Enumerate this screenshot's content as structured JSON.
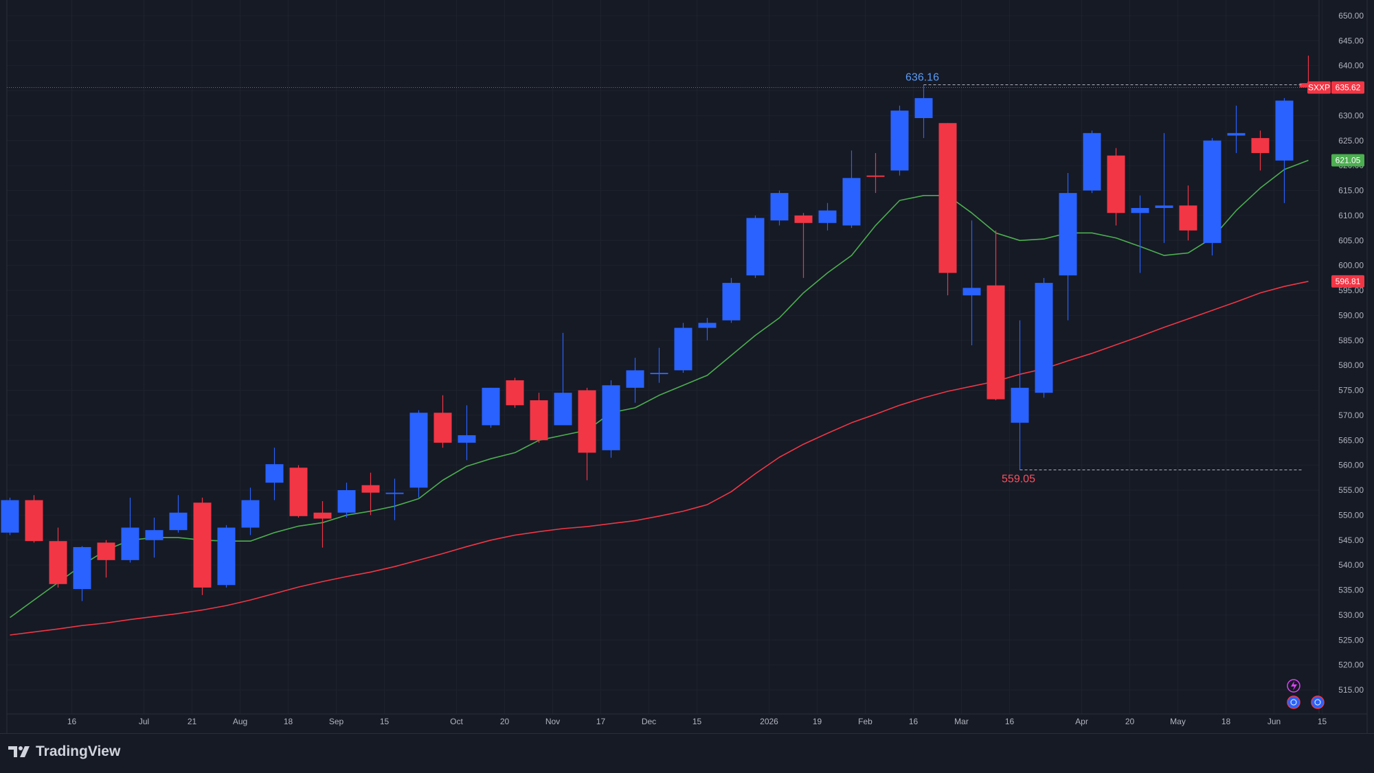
{
  "branding": {
    "logo_text": "TradingView"
  },
  "chart_data": {
    "type": "candlestick",
    "symbol": "SXXP",
    "timeframe": "1W",
    "colors": {
      "up": "#2962ff",
      "down": "#f23645",
      "ma_fast": "#4caf50",
      "ma_slow": "#f23645",
      "background": "#161a25",
      "grid": "#1e222d"
    },
    "ylim": [
      511,
      652
    ],
    "y_ticks": [
      "515.00",
      "520.00",
      "525.00",
      "530.00",
      "535.00",
      "540.00",
      "545.00",
      "550.00",
      "555.00",
      "560.00",
      "565.00",
      "570.00",
      "575.00",
      "580.00",
      "585.00",
      "590.00",
      "595.00",
      "600.00",
      "605.00",
      "610.00",
      "615.00",
      "620.00",
      "625.00",
      "630.00",
      "635.00",
      "640.00",
      "645.00",
      "650.00"
    ],
    "x_ticks": [
      {
        "i": 1,
        "label": "16"
      },
      {
        "i": 4,
        "label": "Jul"
      },
      {
        "i": 6,
        "label": "21"
      },
      {
        "i": 8,
        "label": "Aug"
      },
      {
        "i": 10,
        "label": "18"
      },
      {
        "i": 12,
        "label": "Sep"
      },
      {
        "i": 14,
        "label": "15"
      },
      {
        "i": 17,
        "label": "Oct"
      },
      {
        "i": 19,
        "label": "20"
      },
      {
        "i": 21,
        "label": "Nov"
      },
      {
        "i": 23,
        "label": "17"
      },
      {
        "i": 25,
        "label": "Dec"
      },
      {
        "i": 27,
        "label": "15"
      },
      {
        "i": 30,
        "label": "2026"
      },
      {
        "i": 32,
        "label": "19"
      },
      {
        "i": 34,
        "label": "Feb"
      },
      {
        "i": 36,
        "label": "16"
      },
      {
        "i": 38,
        "label": "Mar"
      },
      {
        "i": 40,
        "label": "16"
      },
      {
        "i": 43,
        "label": "Apr"
      },
      {
        "i": 45,
        "label": "20"
      },
      {
        "i": 47,
        "label": "May"
      },
      {
        "i": 49,
        "label": "18"
      },
      {
        "i": 51,
        "label": "Jun"
      },
      {
        "i": 53,
        "label": "15"
      }
    ],
    "candles": [
      {
        "o": 546.5,
        "h": 553.5,
        "l": 546.0,
        "c": 553.0
      },
      {
        "o": 553.0,
        "h": 554.0,
        "l": 544.5,
        "c": 544.8
      },
      {
        "o": 544.8,
        "h": 547.5,
        "l": 535.5,
        "c": 536.2
      },
      {
        "o": 535.2,
        "h": 543.8,
        "l": 532.8,
        "c": 543.6
      },
      {
        "o": 544.5,
        "h": 545.0,
        "l": 537.5,
        "c": 541.0
      },
      {
        "o": 541.0,
        "h": 553.5,
        "l": 540.5,
        "c": 547.5
      },
      {
        "o": 545.0,
        "h": 549.5,
        "l": 541.5,
        "c": 547.0
      },
      {
        "o": 547.0,
        "h": 554.0,
        "l": 546.5,
        "c": 550.5
      },
      {
        "o": 552.5,
        "h": 553.5,
        "l": 534.0,
        "c": 535.5
      },
      {
        "o": 536.0,
        "h": 548.0,
        "l": 535.5,
        "c": 547.5
      },
      {
        "o": 547.5,
        "h": 555.5,
        "l": 546.0,
        "c": 553.0
      },
      {
        "o": 556.5,
        "h": 563.5,
        "l": 553.0,
        "c": 560.2
      },
      {
        "o": 559.5,
        "h": 560.0,
        "l": 549.5,
        "c": 549.8
      },
      {
        "o": 550.5,
        "h": 552.8,
        "l": 543.5,
        "c": 549.3
      },
      {
        "o": 550.5,
        "h": 556.5,
        "l": 549.5,
        "c": 555.0
      },
      {
        "o": 556.0,
        "h": 558.5,
        "l": 550.0,
        "c": 554.5
      },
      {
        "o": 554.3,
        "h": 557.3,
        "l": 549.0,
        "c": 554.5
      },
      {
        "o": 555.5,
        "h": 571.0,
        "l": 553.5,
        "c": 570.5
      },
      {
        "o": 570.5,
        "h": 574.0,
        "l": 563.5,
        "c": 564.5
      },
      {
        "o": 564.5,
        "h": 572.0,
        "l": 561.0,
        "c": 566.0
      },
      {
        "o": 568.0,
        "h": 575.5,
        "l": 567.5,
        "c": 575.5
      },
      {
        "o": 577.0,
        "h": 577.5,
        "l": 571.5,
        "c": 572.0
      },
      {
        "o": 573.0,
        "h": 574.5,
        "l": 564.5,
        "c": 565.0
      },
      {
        "o": 568.0,
        "h": 586.5,
        "l": 568.0,
        "c": 574.5
      },
      {
        "o": 575.0,
        "h": 575.5,
        "l": 557.0,
        "c": 562.5
      },
      {
        "o": 563.0,
        "h": 577.0,
        "l": 561.5,
        "c": 576.0
      },
      {
        "o": 575.5,
        "h": 581.5,
        "l": 572.5,
        "c": 579.0
      },
      {
        "o": 578.5,
        "h": 583.5,
        "l": 576.5,
        "c": 578.5
      },
      {
        "o": 579.0,
        "h": 588.5,
        "l": 578.5,
        "c": 587.5
      },
      {
        "o": 587.5,
        "h": 589.5,
        "l": 585.0,
        "c": 588.5
      },
      {
        "o": 589.0,
        "h": 597.5,
        "l": 588.5,
        "c": 596.5
      },
      {
        "o": 598.0,
        "h": 610.0,
        "l": 597.5,
        "c": 609.5
      },
      {
        "o": 609.0,
        "h": 615.0,
        "l": 608.0,
        "c": 614.5
      },
      {
        "o": 610.0,
        "h": 610.5,
        "l": 597.5,
        "c": 608.5
      },
      {
        "o": 608.5,
        "h": 612.5,
        "l": 607.0,
        "c": 611.0
      },
      {
        "o": 608.0,
        "h": 623.0,
        "l": 607.5,
        "c": 617.5
      },
      {
        "o": 618.0,
        "h": 622.5,
        "l": 614.5,
        "c": 617.8
      },
      {
        "o": 619.0,
        "h": 632.0,
        "l": 618.0,
        "c": 631.0
      },
      {
        "o": 629.5,
        "h": 636.16,
        "l": 625.5,
        "c": 633.5
      },
      {
        "o": 628.5,
        "h": 628.5,
        "l": 594.0,
        "c": 598.5
      },
      {
        "o": 594.0,
        "h": 609.0,
        "l": 584.0,
        "c": 595.5
      },
      {
        "o": 596.0,
        "h": 607.0,
        "l": 573.0,
        "c": 573.2
      },
      {
        "o": 568.5,
        "h": 589.0,
        "l": 559.05,
        "c": 575.5
      },
      {
        "o": 574.5,
        "h": 597.5,
        "l": 573.5,
        "c": 596.5
      },
      {
        "o": 598.0,
        "h": 618.5,
        "l": 589.0,
        "c": 614.5
      },
      {
        "o": 615.0,
        "h": 627.0,
        "l": 614.5,
        "c": 626.5
      },
      {
        "o": 622.0,
        "h": 623.5,
        "l": 608.0,
        "c": 610.5
      },
      {
        "o": 610.5,
        "h": 614.0,
        "l": 598.5,
        "c": 611.5
      },
      {
        "o": 611.5,
        "h": 626.5,
        "l": 604.5,
        "c": 612.0
      },
      {
        "o": 612.0,
        "h": 616.0,
        "l": 605.0,
        "c": 607.0
      },
      {
        "o": 604.5,
        "h": 625.5,
        "l": 602.0,
        "c": 625.0
      },
      {
        "o": 626.0,
        "h": 632.0,
        "l": 622.5,
        "c": 626.5
      },
      {
        "o": 625.5,
        "h": 627.0,
        "l": 619.0,
        "c": 622.5
      },
      {
        "o": 621.0,
        "h": 633.5,
        "l": 612.5,
        "c": 633.0
      },
      {
        "o": 636.5,
        "h": 642.0,
        "l": 635.0,
        "c": 635.62
      }
    ],
    "ma_fast": [
      529.5,
      533.0,
      536.5,
      540.0,
      543.0,
      545.0,
      545.5,
      545.5,
      545.0,
      544.8,
      544.8,
      546.5,
      547.8,
      548.5,
      550.0,
      550.8,
      551.8,
      553.3,
      557.0,
      559.8,
      561.3,
      562.5,
      565.0,
      566.0,
      567.0,
      570.5,
      571.5,
      574.0,
      576.0,
      578.0,
      582.0,
      586.0,
      589.5,
      594.5,
      598.5,
      602.0,
      608.0,
      613.0,
      614.0,
      614.0,
      610.5,
      606.5,
      605.0,
      605.3,
      606.5,
      606.5,
      605.5,
      603.8,
      602.0,
      602.5,
      605.5,
      611.0,
      615.5,
      619.2,
      621.05
    ],
    "ma_slow": [
      526.0,
      526.6,
      527.2,
      527.9,
      528.4,
      529.1,
      529.7,
      530.3,
      531.0,
      531.9,
      533.0,
      534.3,
      535.6,
      536.7,
      537.7,
      538.6,
      539.7,
      541.0,
      542.3,
      543.7,
      545.0,
      546.0,
      546.7,
      547.3,
      547.7,
      548.3,
      548.9,
      549.8,
      550.8,
      552.1,
      554.7,
      558.3,
      561.6,
      564.2,
      566.4,
      568.5,
      570.2,
      572.0,
      573.5,
      574.8,
      575.8,
      576.8,
      578.2,
      579.3,
      580.9,
      582.4,
      584.1,
      585.8,
      587.6,
      589.3,
      591.0,
      592.7,
      594.5,
      595.8,
      596.81
    ],
    "labels": {
      "high_value": "636.16",
      "low_value": "559.05",
      "symbol_tag": "SXXP",
      "last_price": "635.62",
      "ma_fast_value": "621.05",
      "ma_slow_value": "596.81"
    },
    "icons": [
      "lightning-icon",
      "globe-icon",
      "globe-icon"
    ]
  }
}
